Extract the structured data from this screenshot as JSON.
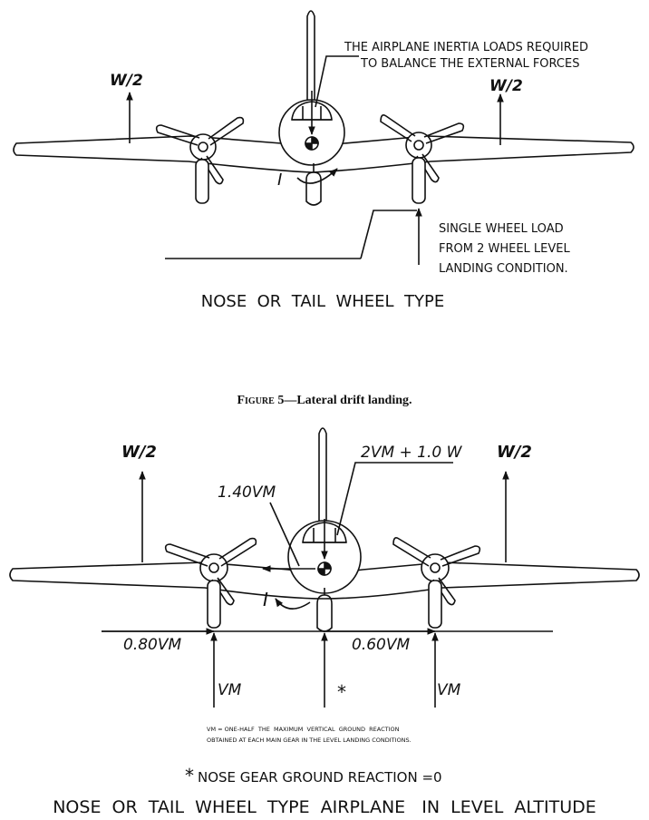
{
  "figure_top": {
    "w_left": "W/2",
    "w_right": "W/2",
    "note_line1": "THE AIRPLANE INERTIA LOADS REQUIRED",
    "note_line2": "TO BALANCE THE EXTERNAL FORCES",
    "inertia": "I",
    "wheel_note_line1": "SINGLE WHEEL LOAD",
    "wheel_note_line2": "FROM 2 WHEEL LEVEL",
    "wheel_note_line3": "LANDING CONDITION.",
    "type_label": "NOSE  OR  TAIL  WHEEL  TYPE"
  },
  "caption": {
    "lead": "Figure 5",
    "text": "—Lateral drift landing."
  },
  "figure_bottom": {
    "w_left": "W/2",
    "w_right": "W/2",
    "load_top": "2VM + 1.0 W",
    "load_side": "1.40VM",
    "inertia": "I",
    "left_side_load": "0.80VM",
    "right_side_load": "0.60VM",
    "left_vertical": "VM",
    "right_vertical": "VM",
    "nose_star": "*",
    "footnote_line1": "VM = ONE-HALF  THE  MAXIMUM  VERTICAL  GROUND  REACTION",
    "footnote_line2": "OBTAINED AT EACH MAIN GEAR IN THE LEVEL LANDING CONDITIONS.",
    "star_note": "NOSE GEAR GROUND REACTION =0",
    "title": "NOSE  OR  TAIL  WHEEL  TYPE  AIRPLANE   IN  LEVEL  ALTITUDE"
  }
}
